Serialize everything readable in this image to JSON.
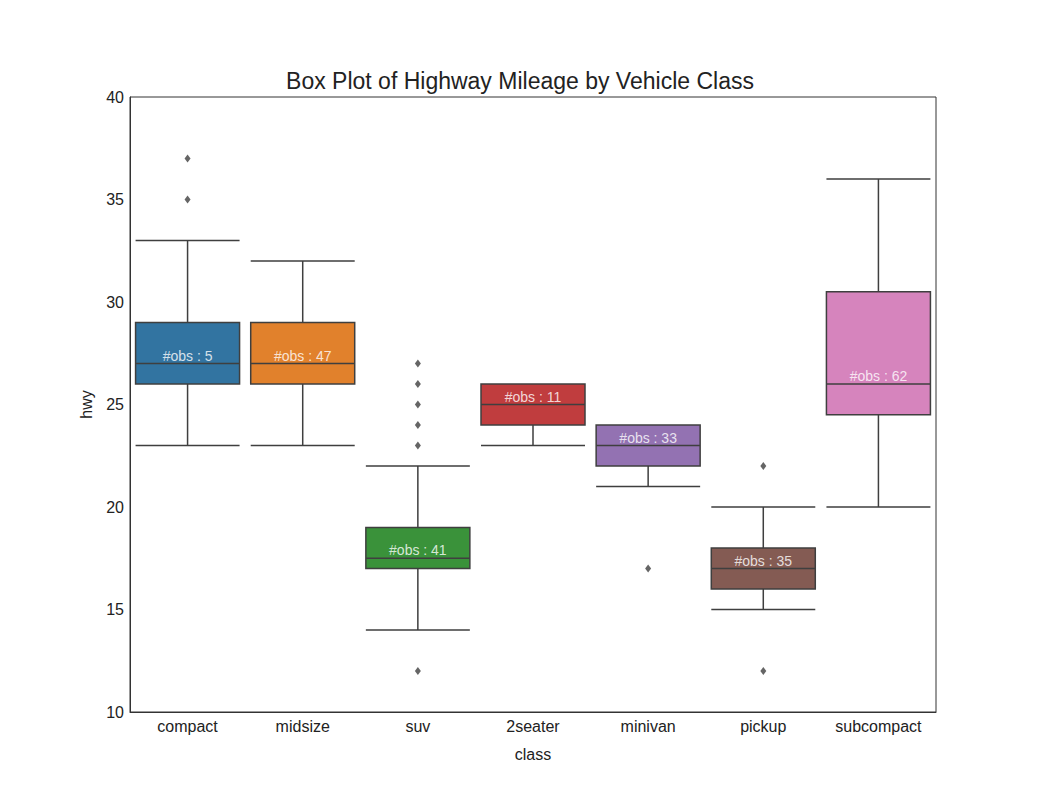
{
  "chart_data": {
    "type": "boxplot",
    "title": "Box Plot of Highway Mileage by Vehicle Class",
    "x_label": "class",
    "y_label": "hwy",
    "categories": [
      "compact",
      "midsize",
      "suv",
      "2seater",
      "minivan",
      "pickup",
      "subcompact"
    ],
    "values": [
      [
        23,
        26,
        27,
        29,
        33
      ],
      [
        23,
        26,
        27,
        29,
        32
      ],
      [
        14,
        17,
        17.5,
        19,
        22
      ],
      [
        23,
        24,
        25,
        26,
        26
      ],
      [
        21,
        22,
        23,
        24,
        24
      ],
      [
        15,
        16,
        17,
        18,
        20
      ],
      [
        20,
        24.5,
        26,
        30.5,
        36
      ]
    ],
    "outliers": [
      [
        35,
        37
      ],
      [],
      [
        12,
        23,
        24,
        25,
        26,
        27
      ],
      [],
      [
        17
      ],
      [
        12,
        22
      ],
      []
    ],
    "annotations": [
      "#obs : 5",
      "#obs : 47",
      "#obs : 41",
      "#obs : 11",
      "#obs : 33",
      "#obs : 35",
      "#obs : 62"
    ],
    "colors": [
      "#3274a1",
      "#e1812c",
      "#3a923a",
      "#c03d3e",
      "#9372b2",
      "#845b53",
      "#d684bd"
    ],
    "ylim": [
      10,
      40
    ],
    "yticks": [
      10,
      15,
      20,
      25,
      30,
      35,
      40
    ],
    "grid": false
  }
}
